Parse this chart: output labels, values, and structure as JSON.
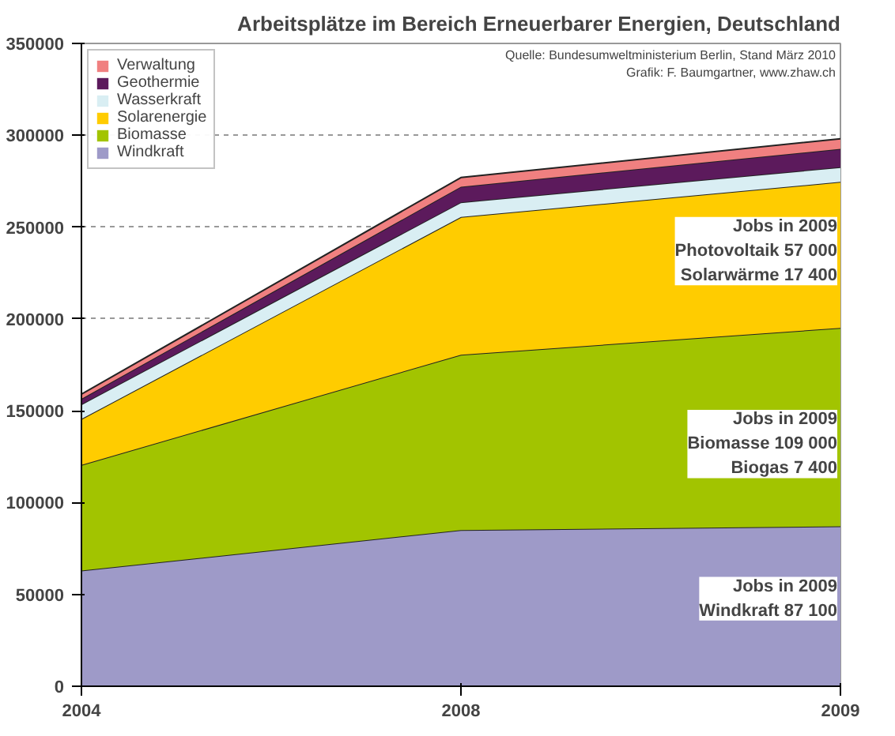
{
  "chart_data": {
    "type": "area",
    "stacked": true,
    "title": "Arbeitsplätze im Bereich Erneuerbarer Energien, Deutschland",
    "categories": [
      "2004",
      "2008",
      "2009"
    ],
    "series": [
      {
        "name": "Windkraft",
        "color": "#9e9ac8",
        "values": [
          63000,
          85000,
          87100
        ]
      },
      {
        "name": "Biomasse",
        "color": "#a2c400",
        "values": [
          57500,
          95500,
          108000
        ]
      },
      {
        "name": "Solarenergie",
        "color": "#ffcc00",
        "values": [
          25000,
          75000,
          79500
        ]
      },
      {
        "name": "Wasserkraft",
        "color": "#d9eef3",
        "values": [
          8000,
          8000,
          8000
        ]
      },
      {
        "name": "Geothermie",
        "color": "#5c1a5c",
        "values": [
          3000,
          8500,
          10000
        ]
      },
      {
        "name": "Verwaltung",
        "color": "#f08080",
        "values": [
          2500,
          5000,
          5500
        ]
      }
    ],
    "ylim": [
      0,
      350000
    ],
    "yticks": [
      0,
      50000,
      100000,
      150000,
      200000,
      250000,
      300000,
      350000
    ],
    "grid": "y",
    "legend": "top left",
    "annotations": [
      "Quelle: Bundesumweltministerium Berlin, Stand März 2010\nGrafik: F. Baumgartner, www.zhaw.ch",
      "Jobs in 2009\nPhotovoltaik 57 000\nSolarwärme 17 400",
      "Jobs in 2009\nBiomasse 109 000\nBiogas 7 400",
      "Jobs in 2009\nWindkraft 87 100"
    ]
  }
}
